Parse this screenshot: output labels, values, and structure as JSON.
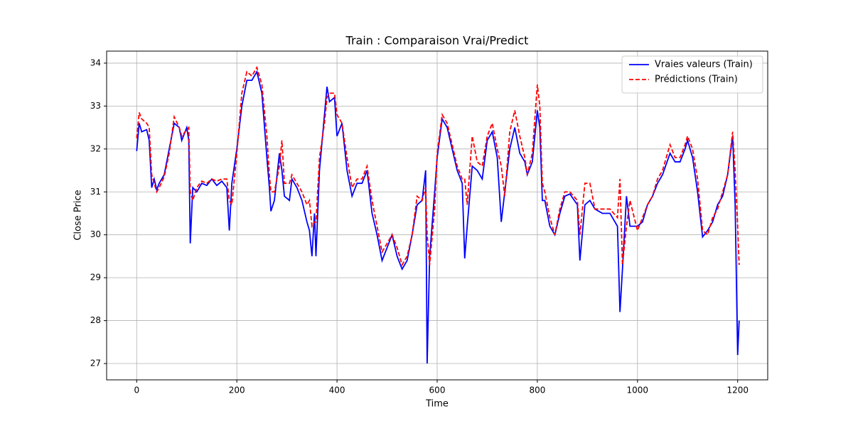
{
  "chart_data": {
    "type": "line",
    "title": "Train : Comparaison Vrai/Predict",
    "x_label": "Time",
    "y_label": "Close Price",
    "x": [
      0,
      5,
      10,
      20,
      25,
      30,
      35,
      40,
      45,
      55,
      65,
      75,
      85,
      90,
      100,
      104,
      107,
      112,
      120,
      130,
      140,
      150,
      160,
      170,
      180,
      185,
      190,
      200,
      210,
      220,
      230,
      240,
      250,
      260,
      265,
      268,
      275,
      285,
      290,
      295,
      305,
      310,
      320,
      330,
      340,
      345,
      350,
      355,
      358,
      365,
      375,
      380,
      385,
      395,
      400,
      410,
      420,
      430,
      440,
      450,
      460,
      470,
      480,
      490,
      500,
      510,
      520,
      530,
      540,
      550,
      560,
      570,
      577,
      580,
      585,
      595,
      600,
      610,
      620,
      630,
      640,
      650,
      655,
      660,
      670,
      680,
      690,
      700,
      710,
      720,
      728,
      735,
      745,
      755,
      765,
      775,
      780,
      790,
      800,
      805,
      810,
      815,
      825,
      835,
      845,
      855,
      865,
      880,
      885,
      895,
      905,
      915,
      930,
      945,
      960,
      965,
      970,
      978,
      985,
      1000,
      1010,
      1020,
      1030,
      1040,
      1050,
      1065,
      1075,
      1085,
      1095,
      1100,
      1110,
      1120,
      1130,
      1140,
      1150,
      1160,
      1170,
      1180,
      1190,
      1195,
      1200,
      1203
    ],
    "series": [
      {
        "name": "Vraies valeurs (Train)",
        "color": "#0000ff",
        "linestyle": "solid",
        "values": [
          31.95,
          32.6,
          32.4,
          32.45,
          32.2,
          31.1,
          31.3,
          31.05,
          31.2,
          31.4,
          32.0,
          32.6,
          32.5,
          32.2,
          32.5,
          32.2,
          29.8,
          31.1,
          31.0,
          31.2,
          31.15,
          31.3,
          31.15,
          31.25,
          31.1,
          30.1,
          31.2,
          32.0,
          33.0,
          33.6,
          33.6,
          33.8,
          33.3,
          31.8,
          31.1,
          30.55,
          30.8,
          31.9,
          31.5,
          30.9,
          30.8,
          31.3,
          31.1,
          30.8,
          30.3,
          30.1,
          29.5,
          30.5,
          29.5,
          31.5,
          32.8,
          33.45,
          33.1,
          33.2,
          32.3,
          32.6,
          31.5,
          30.9,
          31.2,
          31.2,
          31.5,
          30.5,
          30.0,
          29.4,
          29.7,
          30.0,
          29.5,
          29.2,
          29.4,
          30.0,
          30.7,
          30.8,
          31.5,
          27.0,
          29.5,
          31.0,
          31.8,
          32.7,
          32.5,
          32.0,
          31.5,
          31.2,
          29.45,
          30.2,
          31.6,
          31.5,
          31.3,
          32.2,
          32.4,
          31.8,
          30.3,
          31.0,
          32.0,
          32.5,
          31.9,
          31.7,
          31.4,
          31.7,
          32.9,
          32.5,
          30.8,
          30.8,
          30.2,
          30.0,
          30.5,
          30.9,
          30.95,
          30.7,
          29.4,
          30.7,
          30.8,
          30.6,
          30.5,
          30.5,
          30.2,
          28.2,
          29.2,
          30.9,
          30.2,
          30.2,
          30.3,
          30.7,
          30.9,
          31.2,
          31.4,
          31.9,
          31.7,
          31.7,
          32.0,
          32.2,
          31.8,
          31.0,
          29.95,
          30.1,
          30.3,
          30.7,
          30.9,
          31.4,
          32.3,
          30.7,
          27.2,
          28.0
        ]
      },
      {
        "name": "Prédictions (Train)",
        "color": "#ff0000",
        "linestyle": "dashed",
        "values": [
          32.25,
          32.85,
          32.7,
          32.6,
          32.5,
          31.4,
          31.2,
          31.0,
          31.1,
          31.35,
          31.9,
          32.75,
          32.5,
          32.3,
          32.45,
          32.5,
          31.0,
          30.8,
          31.1,
          31.25,
          31.2,
          31.3,
          31.25,
          31.3,
          31.3,
          30.8,
          30.7,
          31.9,
          33.3,
          33.8,
          33.7,
          33.9,
          33.5,
          32.3,
          31.4,
          31.0,
          31.0,
          31.6,
          32.2,
          31.2,
          31.2,
          31.4,
          31.2,
          31.0,
          30.7,
          30.8,
          30.2,
          30.3,
          30.3,
          31.8,
          32.6,
          33.2,
          33.3,
          33.3,
          32.8,
          32.6,
          31.8,
          31.1,
          31.3,
          31.3,
          31.6,
          30.8,
          30.2,
          29.6,
          29.8,
          30.0,
          29.7,
          29.3,
          29.5,
          30.0,
          30.9,
          30.8,
          31.1,
          30.0,
          29.3,
          30.6,
          31.9,
          32.8,
          32.6,
          32.1,
          31.6,
          31.3,
          31.3,
          30.7,
          32.3,
          31.7,
          31.6,
          32.3,
          32.6,
          32.0,
          31.6,
          30.9,
          32.4,
          32.9,
          32.3,
          31.8,
          31.4,
          31.9,
          33.5,
          33.0,
          31.2,
          31.0,
          30.4,
          30.0,
          30.6,
          31.0,
          31.0,
          30.8,
          30.0,
          31.2,
          31.2,
          30.6,
          30.6,
          30.6,
          30.4,
          31.3,
          29.3,
          30.2,
          30.8,
          30.1,
          30.4,
          30.7,
          30.9,
          31.3,
          31.5,
          32.1,
          31.8,
          31.8,
          32.1,
          32.3,
          32.0,
          31.3,
          30.1,
          30.0,
          30.4,
          30.6,
          31.0,
          31.4,
          32.4,
          31.5,
          30.2,
          29.3
        ]
      }
    ],
    "xlim": [
      -60,
      1260
    ],
    "ylim": [
      26.62,
      34.28
    ],
    "xticks": [
      0,
      200,
      400,
      600,
      800,
      1000,
      1200
    ],
    "yticks": [
      27,
      28,
      29,
      30,
      31,
      32,
      33,
      34
    ],
    "grid": true,
    "legend": "upper right"
  }
}
